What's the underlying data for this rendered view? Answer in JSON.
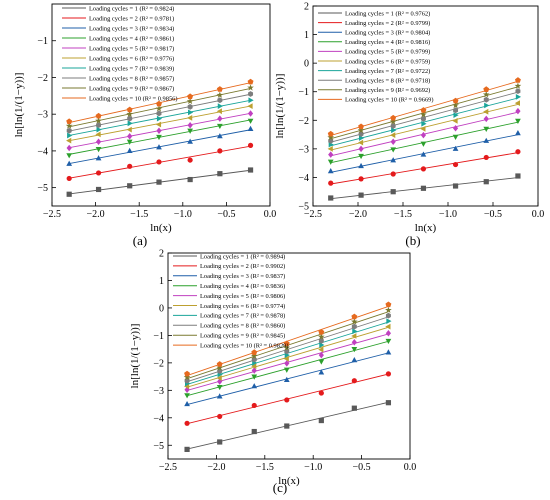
{
  "x_ticks": [
    -2.5,
    -2.0,
    -1.5,
    -1.0,
    -0.5,
    0.0
  ],
  "x_tick_labels": [
    "−2.5",
    "−2.0",
    "−1.5",
    "−1.0",
    "−0.5",
    "0.0"
  ],
  "x_values": [
    -2.303,
    -1.966,
    -1.609,
    -1.273,
    -0.916,
    -0.575,
    -0.223
  ],
  "series_colors": [
    "#595959",
    "#e41a1c",
    "#1f5fa8",
    "#2ca02c",
    "#c040c0",
    "#bca030",
    "#1aa59a",
    "#7d7d7d",
    "#7a7a30",
    "#e66a1f"
  ],
  "series_markers": [
    "square",
    "circle",
    "triangle-up",
    "triangle-down",
    "diamond",
    "triangle-left",
    "triangle-right",
    "hexagon",
    "star",
    "pentagon"
  ],
  "chart_data": [
    {
      "type": "scatter",
      "panel_label": "(a)",
      "xlabel": "ln(x)",
      "ylabel": "ln[ln(1/(1−y))]",
      "xlim": [
        -2.5,
        0.0
      ],
      "ylim": [
        -5.5,
        0.0
      ],
      "y_ticks": [
        -5,
        -4,
        -3,
        -2,
        -1
      ],
      "y_tick_labels": [
        "−5",
        "−4",
        "−3",
        "−2",
        "−1"
      ],
      "series": [
        {
          "name": "Loading cycles = 1 (R² = 0.9824)",
          "values": [
            -5.18,
            -5.05,
            -4.95,
            -4.85,
            -4.78,
            -4.62,
            -4.52
          ]
        },
        {
          "name": "Loading cycles = 2 (R² = 0.9781)",
          "values": [
            -4.75,
            -4.6,
            -4.42,
            -4.3,
            -4.25,
            -4.0,
            -3.85
          ]
        },
        {
          "name": "Loading cycles = 3 (R² = 0.9834)",
          "values": [
            -4.35,
            -4.2,
            -4.0,
            -3.9,
            -3.75,
            -3.6,
            -3.4
          ]
        },
        {
          "name": "Loading cycles = 4 (R² = 0.9861)",
          "values": [
            -4.12,
            -3.95,
            -3.75,
            -3.62,
            -3.45,
            -3.32,
            -3.18
          ]
        },
        {
          "name": "Loading cycles = 5 (R² = 0.9817)",
          "values": [
            -3.92,
            -3.75,
            -3.6,
            -3.45,
            -3.3,
            -3.12,
            -2.98
          ]
        },
        {
          "name": "Loading cycles = 6 (R² = 0.9776)",
          "values": [
            -3.72,
            -3.55,
            -3.42,
            -3.28,
            -3.1,
            -2.92,
            -2.78
          ]
        },
        {
          "name": "Loading cycles = 7 (R² = 0.9839)",
          "values": [
            -3.58,
            -3.42,
            -3.25,
            -3.12,
            -2.95,
            -2.78,
            -2.62
          ]
        },
        {
          "name": "Loading cycles = 8 (R² = 0.9857)",
          "values": [
            -3.45,
            -3.3,
            -3.12,
            -2.98,
            -2.8,
            -2.62,
            -2.45
          ]
        },
        {
          "name": "Loading cycles = 9 (R² = 0.9867)",
          "values": [
            -3.32,
            -3.18,
            -3.0,
            -2.85,
            -2.65,
            -2.48,
            -2.28
          ]
        },
        {
          "name": "Loading cycles = 10 (R² = 0.9856)",
          "values": [
            -3.2,
            -3.05,
            -2.88,
            -2.72,
            -2.52,
            -2.32,
            -2.12
          ]
        }
      ]
    },
    {
      "type": "scatter",
      "panel_label": "(b)",
      "xlabel": "ln(x)",
      "ylabel": "ln[ln(1/(1−y))]",
      "xlim": [
        -2.5,
        0.0
      ],
      "ylim": [
        -5.0,
        2.0
      ],
      "y_ticks": [
        -5,
        -4,
        -3,
        -2,
        -1,
        0,
        1,
        2
      ],
      "y_tick_labels": [
        "−5",
        "−4",
        "−3",
        "−2",
        "−1",
        "0",
        "1",
        "2"
      ],
      "series": [
        {
          "name": "Loading cycles = 1 (R² = 0.9762)",
          "values": [
            -4.72,
            -4.62,
            -4.5,
            -4.38,
            -4.3,
            -4.15,
            -3.95
          ]
        },
        {
          "name": "Loading cycles = 2 (R² = 0.9799)",
          "values": [
            -4.2,
            -4.05,
            -3.88,
            -3.7,
            -3.55,
            -3.3,
            -3.1
          ]
        },
        {
          "name": "Loading cycles = 3 (R² = 0.9804)",
          "values": [
            -3.78,
            -3.6,
            -3.4,
            -3.2,
            -3.0,
            -2.72,
            -2.45
          ]
        },
        {
          "name": "Loading cycles = 4 (R² = 0.9816)",
          "values": [
            -3.45,
            -3.25,
            -3.02,
            -2.82,
            -2.58,
            -2.3,
            -2.02
          ]
        },
        {
          "name": "Loading cycles = 5 (R² = 0.9799)",
          "values": [
            -3.2,
            -3.0,
            -2.75,
            -2.52,
            -2.28,
            -1.95,
            -1.68
          ]
        },
        {
          "name": "Loading cycles = 6 (R² = 0.9759)",
          "values": [
            -3.0,
            -2.78,
            -2.52,
            -2.3,
            -2.02,
            -1.7,
            -1.4
          ]
        },
        {
          "name": "Loading cycles = 7 (R² = 0.9722)",
          "values": [
            -2.85,
            -2.62,
            -2.35,
            -2.12,
            -1.82,
            -1.48,
            -1.18
          ]
        },
        {
          "name": "Loading cycles = 8 (R² = 0.9718)",
          "values": [
            -2.72,
            -2.48,
            -2.2,
            -1.95,
            -1.65,
            -1.28,
            -0.98
          ]
        },
        {
          "name": "Loading cycles = 9 (R² = 0.9692)",
          "values": [
            -2.6,
            -2.35,
            -2.05,
            -1.8,
            -1.48,
            -1.1,
            -0.8
          ]
        },
        {
          "name": "Loading cycles = 10 (R² = 0.9669)",
          "values": [
            -2.48,
            -2.22,
            -1.92,
            -1.65,
            -1.32,
            -0.92,
            -0.6
          ]
        }
      ]
    },
    {
      "type": "scatter",
      "panel_label": "(c)",
      "xlabel": "ln(x)",
      "ylabel": "ln[ln(1/(1−y))]",
      "xlim": [
        -2.5,
        0.0
      ],
      "ylim": [
        -5.5,
        2.0
      ],
      "y_ticks": [
        -5,
        -4,
        -3,
        -2,
        -1,
        0,
        1,
        2
      ],
      "y_tick_labels": [
        "−5",
        "−4",
        "−3",
        "−2",
        "−1",
        "0",
        "1",
        "2"
      ],
      "series": [
        {
          "name": "Loading cycles = 1 (R² = 0.9894)",
          "values": [
            -5.15,
            -4.88,
            -4.5,
            -4.3,
            -4.1,
            -3.65,
            -3.45
          ]
        },
        {
          "name": "Loading cycles = 2 (R² = 0.9902)",
          "values": [
            -4.2,
            -3.95,
            -3.55,
            -3.35,
            -3.1,
            -2.65,
            -2.4
          ]
        },
        {
          "name": "Loading cycles = 3 (R² = 0.9837)",
          "values": [
            -3.5,
            -3.22,
            -2.85,
            -2.62,
            -2.35,
            -1.9,
            -1.62
          ]
        },
        {
          "name": "Loading cycles = 4 (R² = 0.9836)",
          "values": [
            -3.18,
            -2.88,
            -2.5,
            -2.25,
            -1.95,
            -1.5,
            -1.2
          ]
        },
        {
          "name": "Loading cycles = 5 (R² = 0.9806)",
          "values": [
            -2.98,
            -2.68,
            -2.28,
            -2.02,
            -1.72,
            -1.25,
            -0.92
          ]
        },
        {
          "name": "Loading cycles = 6 (R² = 0.9774)",
          "values": [
            -2.85,
            -2.55,
            -2.12,
            -1.85,
            -1.52,
            -1.02,
            -0.68
          ]
        },
        {
          "name": "Loading cycles = 7 (R² = 0.9878)",
          "values": [
            -2.75,
            -2.42,
            -2.0,
            -1.72,
            -1.35,
            -0.85,
            -0.48
          ]
        },
        {
          "name": "Loading cycles = 8 (R² = 0.9860)",
          "values": [
            -2.65,
            -2.3,
            -1.88,
            -1.58,
            -1.2,
            -0.68,
            -0.28
          ]
        },
        {
          "name": "Loading cycles = 9 (R² = 0.9845)",
          "values": [
            -2.52,
            -2.18,
            -1.75,
            -1.45,
            -1.05,
            -0.5,
            -0.08
          ]
        },
        {
          "name": "Loading cycles = 10 (R² = 0.9829)",
          "values": [
            -2.4,
            -2.05,
            -1.62,
            -1.3,
            -0.88,
            -0.32,
            0.12
          ]
        }
      ]
    }
  ]
}
